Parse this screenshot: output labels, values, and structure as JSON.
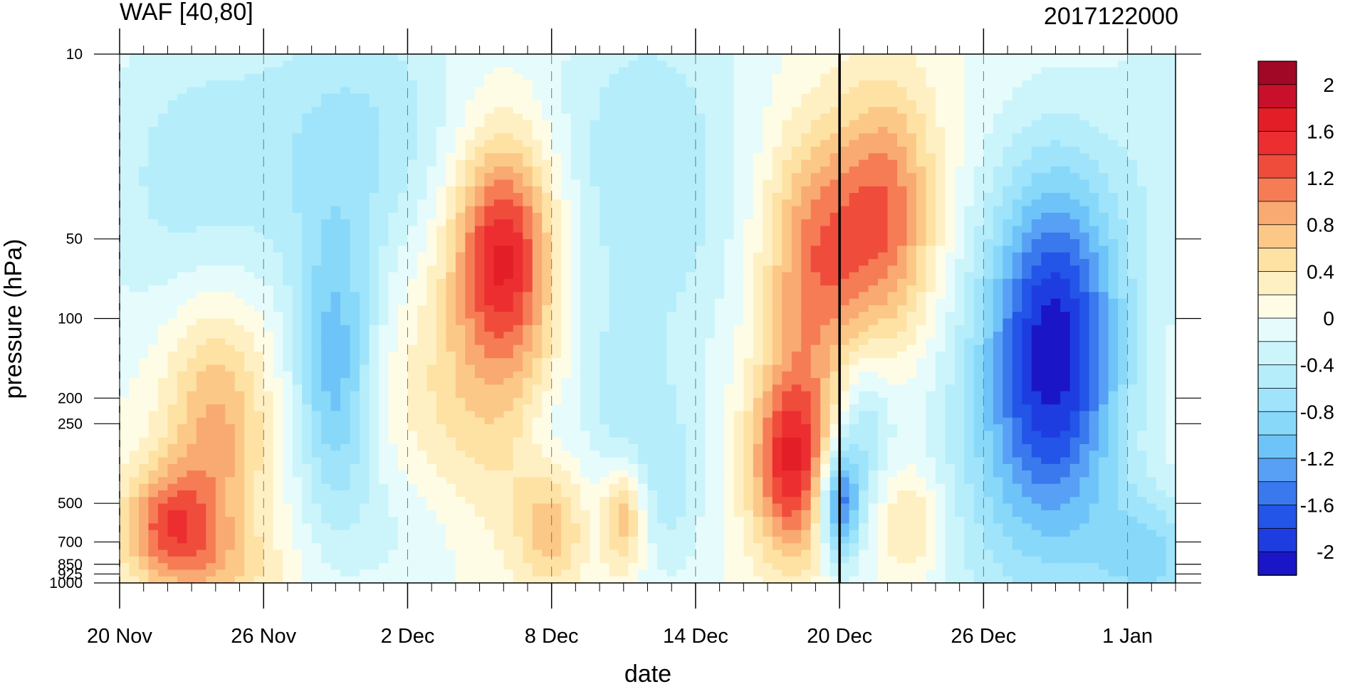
{
  "chart_data": {
    "type": "heatmap",
    "title": "WAF [40,80]",
    "subtitle": "2017122000",
    "xlabel": "date",
    "ylabel": "pressure (hPa)",
    "x_start": "20 Nov",
    "x_end": "3 Jan",
    "x_tick_labels": [
      "20 Nov",
      "26 Nov",
      "2 Dec",
      "8 Dec",
      "14 Dec",
      "20 Dec",
      "26 Dec",
      "1 Jan"
    ],
    "y_log_scale": true,
    "y_ticks": [
      10,
      50,
      100,
      200,
      250,
      500,
      700,
      850,
      925,
      1000
    ],
    "y_tick_labels": [
      "10",
      "50",
      "100",
      "200",
      "250",
      "500",
      "700",
      "850",
      "925",
      "1000"
    ],
    "vertical_marker_date": "20 Dec",
    "colorbar": {
      "levels": [
        -2.2,
        -2.0,
        -1.8,
        -1.6,
        -1.4,
        -1.2,
        -1.0,
        -0.8,
        -0.6,
        -0.4,
        -0.2,
        0.0,
        0.2,
        0.4,
        0.6,
        0.8,
        1.0,
        1.2,
        1.4,
        1.6,
        1.8,
        2.0,
        2.2
      ],
      "tick_labels": [
        "2",
        "1.6",
        "1.2",
        "0.8",
        "0.4",
        "0",
        "-0.4",
        "-0.8",
        "-1.2",
        "-1.6",
        "-2"
      ],
      "tick_values": [
        2.0,
        1.6,
        1.2,
        0.8,
        0.4,
        0.0,
        -0.4,
        -0.8,
        -1.2,
        -1.6,
        -2.0
      ],
      "colors": [
        "#1a16c8",
        "#1e3de0",
        "#2255e8",
        "#3a78ee",
        "#57a0f5",
        "#6ec4f8",
        "#88d8fa",
        "#9fe4fb",
        "#b5edfb",
        "#ccf5fb",
        "#e6fbfc",
        "#fffce6",
        "#fff0c4",
        "#fde2a4",
        "#fcc888",
        "#f8aa72",
        "#f67c56",
        "#f04c3c",
        "#ec2e30",
        "#e31e26",
        "#c8102a",
        "#a00826"
      ]
    },
    "field_blobs": [
      {
        "date": "22 Nov",
        "p": 600,
        "amp": 1.1,
        "sd": 1.4,
        "sl": 0.35
      },
      {
        "date": "24 Nov",
        "p": 250,
        "amp": 0.9,
        "sd": 1.6,
        "sl": 0.8
      },
      {
        "date": "24 Nov",
        "p": 900,
        "amp": 0.4,
        "sd": 2.0,
        "sl": 0.3
      },
      {
        "date": "29 Nov",
        "p": 160,
        "amp": -1.1,
        "sd": 1.2,
        "sl": 0.9
      },
      {
        "date": "23 Nov",
        "p": 30,
        "amp": -0.5,
        "sd": 3.0,
        "sl": 1.0
      },
      {
        "date": "30 Nov",
        "p": 20,
        "amp": -0.6,
        "sd": 3.0,
        "sl": 0.9
      },
      {
        "date": "2 Dec",
        "p": 600,
        "amp": -0.3,
        "sd": 2.0,
        "sl": 0.5
      },
      {
        "date": "6 Dec",
        "p": 55,
        "amp": 1.6,
        "sd": 1.5,
        "sl": 0.7
      },
      {
        "date": "5 Dec",
        "p": 220,
        "amp": 0.5,
        "sd": 3.0,
        "sl": 0.9
      },
      {
        "date": "8 Dec",
        "p": 250,
        "amp": -0.3,
        "sd": 1.0,
        "sl": 0.3
      },
      {
        "date": "9 Dec",
        "p": 110,
        "amp": -0.2,
        "sd": 0.8,
        "sl": 0.3
      },
      {
        "date": "8 Dec",
        "p": 650,
        "amp": 0.6,
        "sd": 1.0,
        "sl": 0.35
      },
      {
        "date": "11 Dec",
        "p": 550,
        "amp": 0.9,
        "sd": 0.6,
        "sl": 0.35
      },
      {
        "date": "12 Dec",
        "p": 30,
        "amp": -0.6,
        "sd": 3.0,
        "sl": 1.2
      },
      {
        "date": "11 Dec",
        "p": 250,
        "amp": -0.5,
        "sd": 1.2,
        "sl": 0.6
      },
      {
        "date": "13 Dec",
        "p": 450,
        "amp": -0.4,
        "sd": 1.0,
        "sl": 0.6
      },
      {
        "date": "18 Dec",
        "p": 350,
        "amp": 1.6,
        "sd": 1.2,
        "sl": 0.6
      },
      {
        "date": "19 Dec",
        "p": 60,
        "amp": 1.1,
        "sd": 1.6,
        "sl": 0.8
      },
      {
        "date": "22 Dec",
        "p": 40,
        "amp": 1.1,
        "sd": 1.5,
        "sl": 0.8
      },
      {
        "date": "20 Dec",
        "p": 500,
        "amp": -1.6,
        "sd": 0.6,
        "sl": 0.35
      },
      {
        "date": "21 Dec",
        "p": 250,
        "amp": -0.6,
        "sd": 0.8,
        "sl": 0.5
      },
      {
        "date": "23 Dec",
        "p": 600,
        "amp": 0.6,
        "sd": 1.0,
        "sl": 0.35
      },
      {
        "date": "29 Dec",
        "p": 120,
        "amp": -1.9,
        "sd": 2.0,
        "sl": 1.1
      },
      {
        "date": "27 Dec",
        "p": 400,
        "amp": -0.5,
        "sd": 3.0,
        "sl": 1.2
      },
      {
        "date": "2 Jan",
        "p": 800,
        "amp": -0.8,
        "sd": 1.8,
        "sl": 0.4
      },
      {
        "date": "3 Jan",
        "p": 20,
        "amp": -0.3,
        "sd": 2.0,
        "sl": 1.0
      }
    ]
  }
}
